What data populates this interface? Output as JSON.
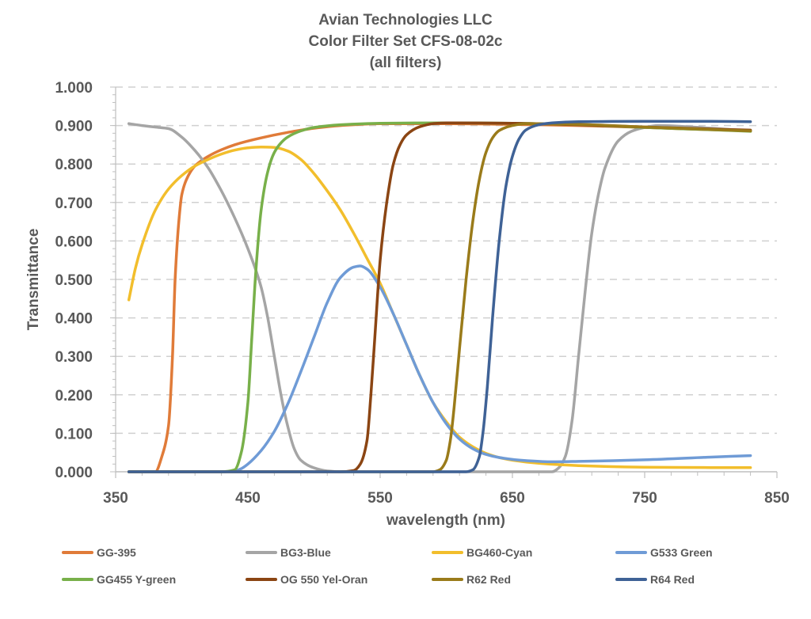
{
  "chart_data": {
    "type": "line",
    "title": [
      "Avian Technologies LLC",
      "Color Filter Set CFS-08-02c",
      "(all filters)"
    ],
    "xlabel": "wavelength (nm)",
    "ylabel": "Transmittance",
    "xlim": [
      350,
      850
    ],
    "ylim": [
      0,
      1
    ],
    "xticks": [
      350,
      450,
      550,
      650,
      750,
      850
    ],
    "xtick_labels": [
      "350",
      "450",
      "550",
      "650",
      "750",
      "850"
    ],
    "yticks": [
      0,
      0.1,
      0.2,
      0.3,
      0.4,
      0.5,
      0.6,
      0.7,
      0.8,
      0.9,
      1.0
    ],
    "ytick_labels": [
      "0.000",
      "0.100",
      "0.200",
      "0.300",
      "0.400",
      "0.500",
      "0.600",
      "0.700",
      "0.800",
      "0.900",
      "1.000"
    ],
    "grid": "horizontal dashed",
    "legend_position": "bottom",
    "series": [
      {
        "name": "GG-395",
        "color": "#E07B39",
        "x": [
          360,
          370,
          380,
          385,
          390,
          393,
          395,
          398,
          400,
          405,
          410,
          420,
          430,
          440,
          460,
          480,
          500,
          520,
          550,
          600,
          650,
          700,
          750,
          800,
          830
        ],
        "values": [
          0,
          0,
          0,
          0.04,
          0.12,
          0.3,
          0.5,
          0.66,
          0.72,
          0.77,
          0.795,
          0.82,
          0.837,
          0.85,
          0.868,
          0.882,
          0.893,
          0.9,
          0.905,
          0.905,
          0.903,
          0.9,
          0.895,
          0.889,
          0.886
        ]
      },
      {
        "name": "BG3-Blue",
        "color": "#A5A5A5",
        "x": [
          360,
          370,
          380,
          390,
          400,
          410,
          420,
          430,
          440,
          450,
          460,
          465,
          470,
          475,
          480,
          485,
          490,
          500,
          510,
          520,
          600,
          670,
          680,
          685,
          690,
          695,
          700,
          705,
          710,
          715,
          720,
          730,
          740,
          750,
          760,
          800,
          830
        ],
        "values": [
          0.905,
          0.9,
          0.896,
          0.892,
          0.87,
          0.835,
          0.79,
          0.73,
          0.66,
          0.58,
          0.48,
          0.4,
          0.3,
          0.2,
          0.12,
          0.06,
          0.03,
          0.01,
          0.002,
          0,
          0,
          0,
          0,
          0.01,
          0.04,
          0.13,
          0.3,
          0.47,
          0.62,
          0.72,
          0.79,
          0.86,
          0.885,
          0.895,
          0.9,
          0.893,
          0.886
        ]
      },
      {
        "name": "BG460-Cyan",
        "color": "#F2BE2C",
        "x": [
          360,
          365,
          370,
          380,
          390,
          400,
          410,
          420,
          430,
          440,
          450,
          460,
          470,
          480,
          490,
          500,
          510,
          520,
          530,
          540,
          550,
          560,
          570,
          580,
          590,
          600,
          610,
          620,
          630,
          640,
          650,
          670,
          700,
          750,
          800,
          830
        ],
        "values": [
          0.447,
          0.53,
          0.59,
          0.68,
          0.735,
          0.77,
          0.795,
          0.812,
          0.826,
          0.836,
          0.842,
          0.844,
          0.843,
          0.834,
          0.812,
          0.775,
          0.73,
          0.68,
          0.62,
          0.555,
          0.49,
          0.41,
          0.33,
          0.25,
          0.18,
          0.13,
          0.09,
          0.065,
          0.048,
          0.037,
          0.03,
          0.022,
          0.016,
          0.012,
          0.011,
          0.011
        ]
      },
      {
        "name": "G533 Green",
        "color": "#6F9BD6",
        "x": [
          360,
          430,
          440,
          445,
          450,
          460,
          470,
          480,
          490,
          500,
          510,
          520,
          530,
          535,
          540,
          550,
          560,
          570,
          580,
          590,
          600,
          610,
          620,
          630,
          640,
          660,
          680,
          700,
          750,
          800,
          830
        ],
        "values": [
          0,
          0,
          0.002,
          0.008,
          0.02,
          0.055,
          0.105,
          0.175,
          0.26,
          0.35,
          0.44,
          0.505,
          0.532,
          0.535,
          0.527,
          0.48,
          0.41,
          0.33,
          0.25,
          0.18,
          0.125,
          0.085,
          0.06,
          0.045,
          0.037,
          0.029,
          0.026,
          0.027,
          0.031,
          0.038,
          0.042
        ]
      },
      {
        "name": "GG455 Y-green",
        "color": "#78B04A",
        "x": [
          360,
          430,
          440,
          445,
          450,
          453,
          456,
          460,
          465,
          470,
          475,
          480,
          490,
          500,
          520,
          550,
          600,
          650,
          700,
          750,
          800,
          830
        ],
        "values": [
          0,
          0,
          0.005,
          0.05,
          0.18,
          0.35,
          0.52,
          0.68,
          0.78,
          0.83,
          0.855,
          0.87,
          0.886,
          0.895,
          0.902,
          0.906,
          0.907,
          0.906,
          0.902,
          0.895,
          0.889,
          0.885
        ]
      },
      {
        "name": "OG 550 Yel-Oran",
        "color": "#8B4513",
        "x": [
          360,
          520,
          530,
          535,
          540,
          543,
          546,
          550,
          555,
          560,
          565,
          570,
          580,
          590,
          600,
          650,
          700,
          750,
          800,
          830
        ],
        "values": [
          0,
          0,
          0.003,
          0.02,
          0.08,
          0.2,
          0.35,
          0.55,
          0.7,
          0.8,
          0.85,
          0.876,
          0.897,
          0.905,
          0.907,
          0.906,
          0.902,
          0.896,
          0.891,
          0.888
        ]
      },
      {
        "name": "R62 Red",
        "color": "#9A7B1A",
        "x": [
          360,
          590,
          595,
          600,
          603,
          606,
          610,
          615,
          620,
          625,
          630,
          635,
          640,
          650,
          660,
          700,
          750,
          800,
          830
        ],
        "values": [
          0,
          0,
          0.005,
          0.03,
          0.08,
          0.17,
          0.32,
          0.5,
          0.65,
          0.76,
          0.83,
          0.868,
          0.887,
          0.9,
          0.905,
          0.903,
          0.896,
          0.89,
          0.886
        ]
      },
      {
        "name": "R64 Red",
        "color": "#3F6296",
        "x": [
          360,
          615,
          620,
          625,
          628,
          631,
          635,
          640,
          645,
          650,
          655,
          660,
          670,
          680,
          700,
          750,
          800,
          830
        ],
        "values": [
          0,
          0,
          0.005,
          0.04,
          0.11,
          0.22,
          0.4,
          0.6,
          0.74,
          0.82,
          0.865,
          0.888,
          0.902,
          0.907,
          0.91,
          0.911,
          0.911,
          0.91
        ]
      }
    ]
  },
  "legend": {
    "items": [
      {
        "label": "GG-395",
        "color": "#E07B39"
      },
      {
        "label": "BG3-Blue",
        "color": "#A5A5A5"
      },
      {
        "label": "BG460-Cyan",
        "color": "#F2BE2C"
      },
      {
        "label": "G533 Green",
        "color": "#6F9BD6"
      },
      {
        "label": "GG455 Y-green",
        "color": "#78B04A"
      },
      {
        "label": "OG 550 Yel-Oran",
        "color": "#8B4513"
      },
      {
        "label": "R62 Red",
        "color": "#9A7B1A"
      },
      {
        "label": "R64 Red",
        "color": "#3F6296"
      }
    ]
  }
}
